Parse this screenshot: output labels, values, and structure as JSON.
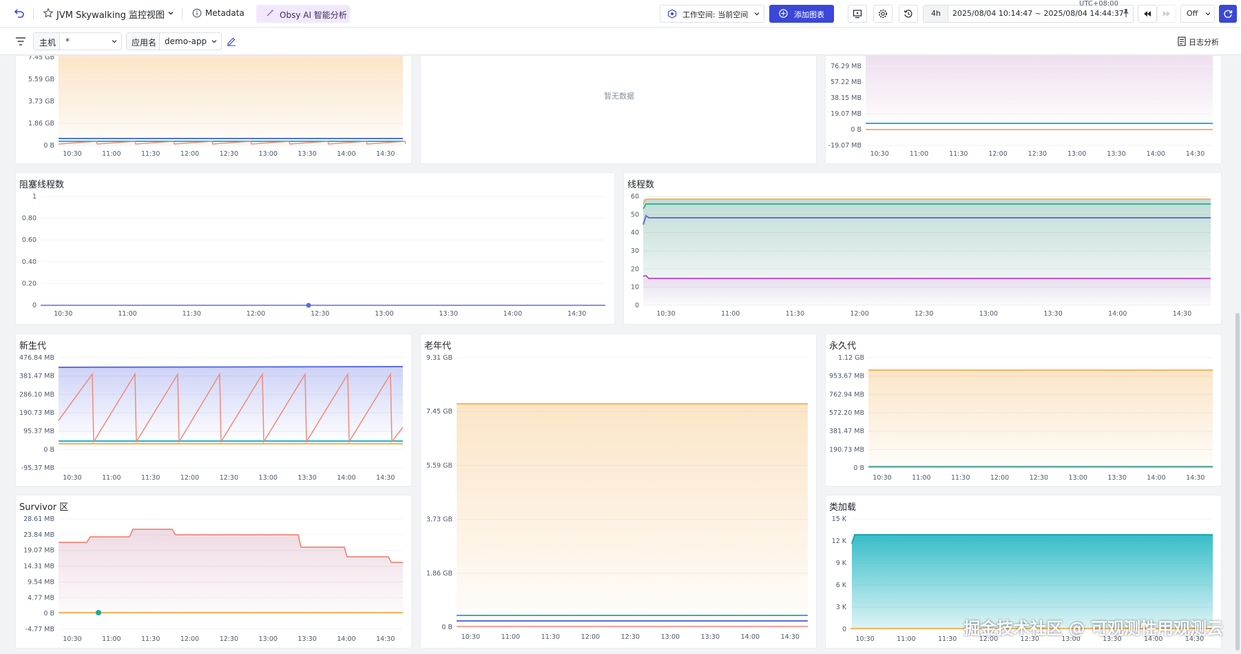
{
  "topbar": {
    "title": "JVM Skywalking 监控视图",
    "metadata_label": "Metadata",
    "ai_label": "Obsy AI 智能分析",
    "workspace_label": "工作空间: 当前空间",
    "add_chart_label": "添加图表",
    "time_shortcut": "4h",
    "time_range": "2025/08/04 10:14:47 ~ 2025/08/04 14:44:37",
    "timezone": "UTC+08:00",
    "refresh_mode": "Off"
  },
  "filters": {
    "host_label": "主机",
    "host_value": "*",
    "app_label": "应用名",
    "app_value": "demo-app",
    "log_analysis_label": "日志分析"
  },
  "x_ticks": [
    "10:30",
    "11:00",
    "11:30",
    "12:00",
    "12:30",
    "13:00",
    "13:30",
    "14:00",
    "14:30"
  ],
  "colors": {
    "accent": "#3a47d8",
    "orange": "#f3b45f",
    "teal": "#22b6c3",
    "blue": "#5b6de0",
    "salmon": "#ef8a78",
    "green": "#35b58e",
    "purple": "#c23ec8"
  },
  "panels": {
    "top_left": {
      "title": "",
      "y_ticks": [
        "7.45 GB",
        "5.59 GB",
        "3.73 GB",
        "1.86 GB",
        "0 B"
      ]
    },
    "top_mid": {
      "title": "",
      "empty_text": "暂无数据"
    },
    "top_right": {
      "title": "",
      "y_ticks": [
        "76.29 MB",
        "57.22 MB",
        "38.15 MB",
        "19.07 MB",
        "0 B",
        "-19.07 MB"
      ]
    },
    "blocked": {
      "title": "阻塞线程数",
      "y_ticks": [
        "1",
        "0.80",
        "0.60",
        "0.40",
        "0.20",
        "0"
      ]
    },
    "threads": {
      "title": "线程数",
      "y_ticks": [
        "60",
        "50",
        "40",
        "30",
        "20",
        "10",
        "0"
      ]
    },
    "young": {
      "title": "新生代",
      "y_ticks": [
        "476.84 MB",
        "381.47 MB",
        "286.10 MB",
        "190.73 MB",
        "95.37 MB",
        "0 B",
        "-95.37 MB"
      ]
    },
    "old": {
      "title": "老年代",
      "y_ticks": [
        "9.31 GB",
        "7.45 GB",
        "5.59 GB",
        "3.73 GB",
        "1.86 GB",
        "0 B"
      ]
    },
    "perm": {
      "title": "永久代",
      "y_ticks": [
        "1.12 GB",
        "953.67 MB",
        "762.94 MB",
        "572.20 MB",
        "381.47 MB",
        "190.73 MB",
        "0 B"
      ]
    },
    "survivor": {
      "title": "Survivor 区",
      "y_ticks": [
        "28.61 MB",
        "23.84 MB",
        "19.07 MB",
        "14.31 MB",
        "9.54 MB",
        "4.77 MB",
        "0 B",
        "-4.77 MB"
      ]
    },
    "classload": {
      "title": "类加载",
      "y_ticks": [
        "15 K",
        "12 K",
        "9 K",
        "6 K",
        "3 K",
        "0"
      ]
    }
  },
  "watermark": "掘金技术社区 @ 可观测性用观测云"
}
